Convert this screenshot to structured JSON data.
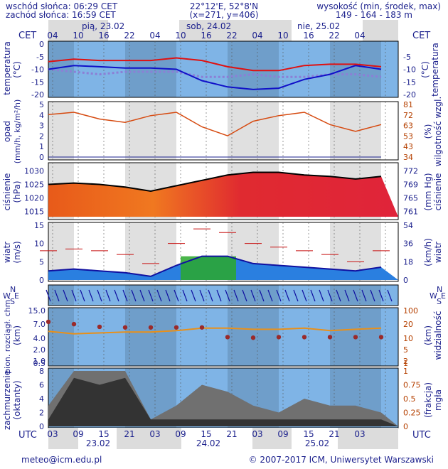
{
  "header": {
    "sunrise": "wschód słońca: 06:29 CET",
    "sunset": "zachód słońca: 16:59 CET",
    "coords": "22°12'E, 52°8'N",
    "grid": "(x=271,  y=406)",
    "alt_label": "wysokość (min, środek, max)",
    "alt_values": "149 - 164 - 183 m"
  },
  "timeline": {
    "zone_top": "CET",
    "zone_bottom": "UTC",
    "hours_cet": [
      "04",
      "10",
      "16",
      "22",
      "04",
      "10",
      "16",
      "22",
      "04",
      "10",
      "16",
      "22",
      "04"
    ],
    "hours_utc": [
      "03",
      "09",
      "15",
      "21",
      "03",
      "09",
      "15",
      "21",
      "03",
      "09",
      "15",
      "21",
      "03"
    ],
    "days_top": [
      "pią, 23.02",
      "sob, 24.02",
      "nie, 25.02"
    ],
    "days_bottom": [
      "23.02",
      "24.02",
      "25.02"
    ]
  },
  "labels": {
    "temp": "temperatura",
    "temp_unit": "(°C)",
    "precip": "opad",
    "precip_unit": "(mm/h, kg/m²/h)",
    "humidity": "wilgotność wzgl.",
    "humidity_unit": "(%)",
    "pressure": "ciśnienie",
    "pressure_unit": "(hPa)",
    "pressure_unit_r": "(mm Hg)",
    "wind": "wiatr",
    "wind_unit": "(m/s)",
    "wind_unit_r": "(km/h)",
    "dir_n": "N",
    "dir_w": "W",
    "dir_s": "S",
    "dir_e": "E",
    "cloud_base": "pion. rozciągł. chm.",
    "cloud_unit": "(km)",
    "visibility": "widzialność",
    "visibility_unit": "(km)",
    "cloudiness": "zachmurzenie",
    "cloudiness_unit": "(oktanty)",
    "fog": "mgła",
    "fog_unit": "(frakcja)"
  },
  "footer": {
    "email": "meteo@icm.edu.pl",
    "copyright": "© 2007-2017 ICM, Uniwersytet Warszawski"
  },
  "chart_data": [
    {
      "type": "line",
      "name": "temperature",
      "x_hours": [
        0,
        6,
        12,
        18,
        24,
        30,
        36,
        42,
        48,
        54,
        60,
        66,
        72,
        78
      ],
      "series": [
        {
          "values": [
            -7,
            -6,
            -6.5,
            -6.5,
            -6.5,
            -5.5,
            -6.5,
            -9,
            -10.5,
            -10.5,
            -8.5,
            -8,
            -8,
            -9
          ]
        },
        {
          "values": [
            -10,
            -8.5,
            -9,
            -9.5,
            -9.5,
            -10,
            -14.5,
            -17,
            -18,
            -17.5,
            -14,
            -12,
            -8.5,
            -10
          ]
        },
        {
          "values": [
            -10,
            -11,
            -12,
            -11,
            -11,
            -11,
            -13,
            -13,
            -12,
            -13,
            -13,
            -12,
            -12,
            -13
          ]
        }
      ],
      "ylim": [
        -20,
        0
      ],
      "yticks_left": [
        0,
        -5,
        -10,
        -15,
        -20
      ],
      "yticks_right": [
        -5,
        -10,
        -15,
        -20
      ]
    },
    {
      "type": "line",
      "name": "precip_humidity",
      "x_hours": [
        0,
        6,
        12,
        18,
        24,
        30,
        36,
        42,
        48,
        54,
        60,
        66,
        72,
        78
      ],
      "humidity": [
        72,
        74,
        68,
        65,
        71,
        74,
        61,
        53,
        66,
        71,
        74,
        63,
        57,
        63
      ],
      "precip": [
        0,
        0,
        0,
        0,
        0,
        0,
        0,
        0,
        0,
        0,
        0,
        0,
        0,
        0
      ],
      "yticks_left": [
        0,
        1,
        2,
        3,
        4,
        5
      ],
      "yticks_right": [
        34,
        43,
        53,
        63,
        72,
        81
      ]
    },
    {
      "type": "area",
      "name": "pressure",
      "x_hours": [
        0,
        6,
        12,
        18,
        24,
        30,
        36,
        42,
        48,
        54,
        60,
        66,
        72,
        78
      ],
      "values": [
        1025,
        1025.5,
        1025,
        1024,
        1022.5,
        1024.5,
        1026.5,
        1028.5,
        1029.5,
        1029.5,
        1028.5,
        1028,
        1027,
        1028
      ],
      "ylim": [
        1013,
        1032
      ],
      "yticks_left": [
        1015,
        1020,
        1025,
        1030
      ],
      "yticks_right": [
        761,
        765,
        769,
        772
      ]
    },
    {
      "type": "area",
      "name": "wind",
      "x_hours": [
        0,
        6,
        12,
        18,
        24,
        30,
        36,
        42,
        48,
        54,
        60,
        66,
        72,
        78
      ],
      "speed": [
        2.5,
        3,
        2.5,
        2,
        1,
        4,
        6.5,
        6.5,
        4.5,
        4,
        3.5,
        3,
        2.5,
        3.5
      ],
      "gusts": [
        8,
        8.5,
        8,
        7,
        4.5,
        10,
        14,
        13,
        10,
        9,
        8,
        7,
        5,
        8
      ],
      "yticks_left": [
        0,
        5,
        10,
        15
      ],
      "yticks_right": [
        0,
        18,
        36,
        54
      ]
    },
    {
      "type": "scatter",
      "name": "cloud_visibility",
      "x_hours": [
        0,
        6,
        12,
        18,
        24,
        30,
        36,
        42,
        48,
        54,
        60,
        66,
        72,
        78
      ],
      "cloud_top": [
        7,
        6,
        5,
        4.8,
        4.8,
        4.8,
        4.8,
        2.5,
        2.4,
        2.5,
        2.5,
        2.5,
        2.5,
        2.5
      ],
      "visibility": [
        15,
        12,
        13,
        14,
        14,
        16,
        20,
        20,
        18,
        18,
        20,
        16,
        18,
        20
      ],
      "yticks_left": [
        "15.0",
        "7.0",
        "4.0",
        "2.0",
        "1.0",
        "0.5"
      ],
      "yticks_right": [
        100,
        20,
        10,
        5,
        2,
        1
      ]
    },
    {
      "type": "area",
      "name": "cloudiness",
      "x_hours": [
        0,
        6,
        12,
        18,
        24,
        30,
        36,
        42,
        48,
        54,
        60,
        66,
        72,
        78
      ],
      "total": [
        3,
        8,
        8,
        8,
        1,
        3,
        6,
        5,
        3,
        2,
        4,
        3,
        3,
        2
      ],
      "low": [
        1,
        7,
        6,
        7,
        1,
        1,
        1,
        1,
        1,
        1,
        1,
        1,
        1,
        1
      ],
      "yticks_left": [
        0,
        2,
        4,
        6,
        8
      ],
      "yticks_right": [
        0,
        0.25,
        0.5,
        0.75,
        1
      ]
    }
  ]
}
